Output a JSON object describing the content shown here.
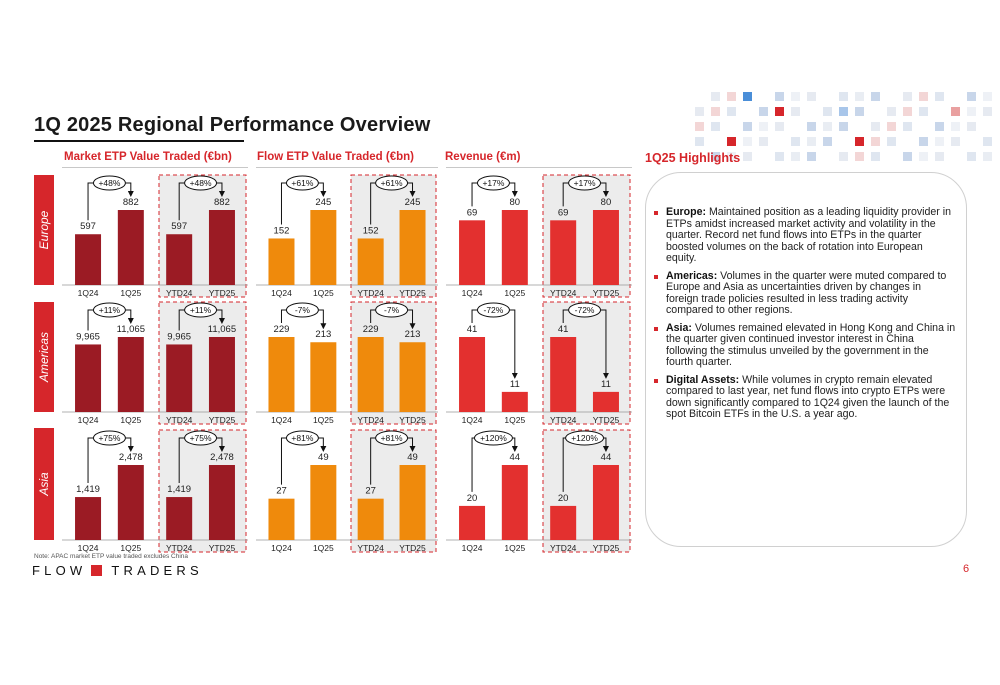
{
  "title": "1Q 2025 Regional Performance Overview",
  "columns": [
    "Market ETP Value Traded (€bn)",
    "Flow ETP Value Traded (€bn)",
    "Revenue (€m)"
  ],
  "regions": [
    "Europe",
    "Americas",
    "Asia"
  ],
  "highlights_title": "1Q25 Highlights",
  "highlights": [
    {
      "label": "Europe:",
      "text": " Maintained position as a leading liquidity provider in ETPs amidst increased market activity and volatility in the quarter. Record net fund flows into ETPs in the quarter boosted volumes on the back of rotation into European equity."
    },
    {
      "label": "Americas:",
      "text": " Volumes in the quarter were muted compared to Europe and Asia as uncertainties driven by changes in foreign trade policies resulted in less trading activity compared to other regions."
    },
    {
      "label": "Asia:",
      "text": " Volumes remained elevated in Hong Kong and China in the quarter given continued investor interest in China following the stimulus unveiled by the government in the fourth quarter."
    },
    {
      "label": "Digital Assets:",
      "text": " While volumes in crypto remain elevated compared to last year, net fund flows into crypto ETPs were down significantly compared to 1Q24 given the launch of the spot Bitcoin ETFs in the U.S. a year ago."
    }
  ],
  "note": "Note: APAC market ETP value traded excludes China",
  "logo_left": "FLOW",
  "logo_right": "TRADERS",
  "page_number": "6",
  "colors": {
    "market": "#9b1b24",
    "flow": "#ef8a0c",
    "revenue": "#e3302f",
    "accent": "#d6262b"
  },
  "chart_data": [
    {
      "type": "bar",
      "region": "Europe",
      "metric": "Market ETP Value Traded (€bn)",
      "categories": [
        "1Q24",
        "1Q25",
        "YTD24",
        "YTD25"
      ],
      "values": [
        597,
        882,
        597,
        882
      ],
      "labels": [
        "597",
        "882",
        "597",
        "882"
      ],
      "changes": [
        "+48%",
        "+48%"
      ]
    },
    {
      "type": "bar",
      "region": "Europe",
      "metric": "Flow ETP Value Traded (€bn)",
      "categories": [
        "1Q24",
        "1Q25",
        "YTD24",
        "YTD25"
      ],
      "values": [
        152,
        245,
        152,
        245
      ],
      "labels": [
        "152",
        "245",
        "152",
        "245"
      ],
      "changes": [
        "+61%",
        "+61%"
      ]
    },
    {
      "type": "bar",
      "region": "Europe",
      "metric": "Revenue (€m)",
      "categories": [
        "1Q24",
        "1Q25",
        "YTD24",
        "YTD25"
      ],
      "values": [
        69,
        80,
        69,
        80
      ],
      "labels": [
        "69",
        "80",
        "69",
        "80"
      ],
      "changes": [
        "+17%",
        "+17%"
      ]
    },
    {
      "type": "bar",
      "region": "Americas",
      "metric": "Market ETP Value Traded (€bn)",
      "categories": [
        "1Q24",
        "1Q25",
        "YTD24",
        "YTD25"
      ],
      "values": [
        9965,
        11065,
        9965,
        11065
      ],
      "labels": [
        "9,965",
        "11,065",
        "9,965",
        "11,065"
      ],
      "changes": [
        "+11%",
        "+11%"
      ]
    },
    {
      "type": "bar",
      "region": "Americas",
      "metric": "Flow ETP Value Traded (€bn)",
      "categories": [
        "1Q24",
        "1Q25",
        "YTD24",
        "YTD25"
      ],
      "values": [
        229,
        213,
        229,
        213
      ],
      "labels": [
        "229",
        "213",
        "229",
        "213"
      ],
      "changes": [
        "-7%",
        "-7%"
      ]
    },
    {
      "type": "bar",
      "region": "Americas",
      "metric": "Revenue (€m)",
      "categories": [
        "1Q24",
        "1Q25",
        "YTD24",
        "YTD25"
      ],
      "values": [
        41,
        11,
        41,
        11
      ],
      "labels": [
        "41",
        "11",
        "41",
        "11"
      ],
      "changes": [
        "-72%",
        "-72%"
      ]
    },
    {
      "type": "bar",
      "region": "Asia",
      "metric": "Market ETP Value Traded (€bn)",
      "categories": [
        "1Q24",
        "1Q25",
        "YTD24",
        "YTD25"
      ],
      "values": [
        1419,
        2478,
        1419,
        2478
      ],
      "labels": [
        "1,419",
        "2,478",
        "1,419",
        "2,478"
      ],
      "changes": [
        "+75%",
        "+75%"
      ]
    },
    {
      "type": "bar",
      "region": "Asia",
      "metric": "Flow ETP Value Traded (€bn)",
      "categories": [
        "1Q24",
        "1Q25",
        "YTD24",
        "YTD25"
      ],
      "values": [
        27,
        49,
        27,
        49
      ],
      "labels": [
        "27",
        "49",
        "27",
        "49"
      ],
      "changes": [
        "+81%",
        "+81%"
      ]
    },
    {
      "type": "bar",
      "region": "Asia",
      "metric": "Revenue (€m)",
      "categories": [
        "1Q24",
        "1Q25",
        "YTD24",
        "YTD25"
      ],
      "values": [
        20,
        44,
        20,
        44
      ],
      "labels": [
        "20",
        "44",
        "20",
        "44"
      ],
      "changes": [
        "+120%",
        "+120%"
      ]
    }
  ]
}
